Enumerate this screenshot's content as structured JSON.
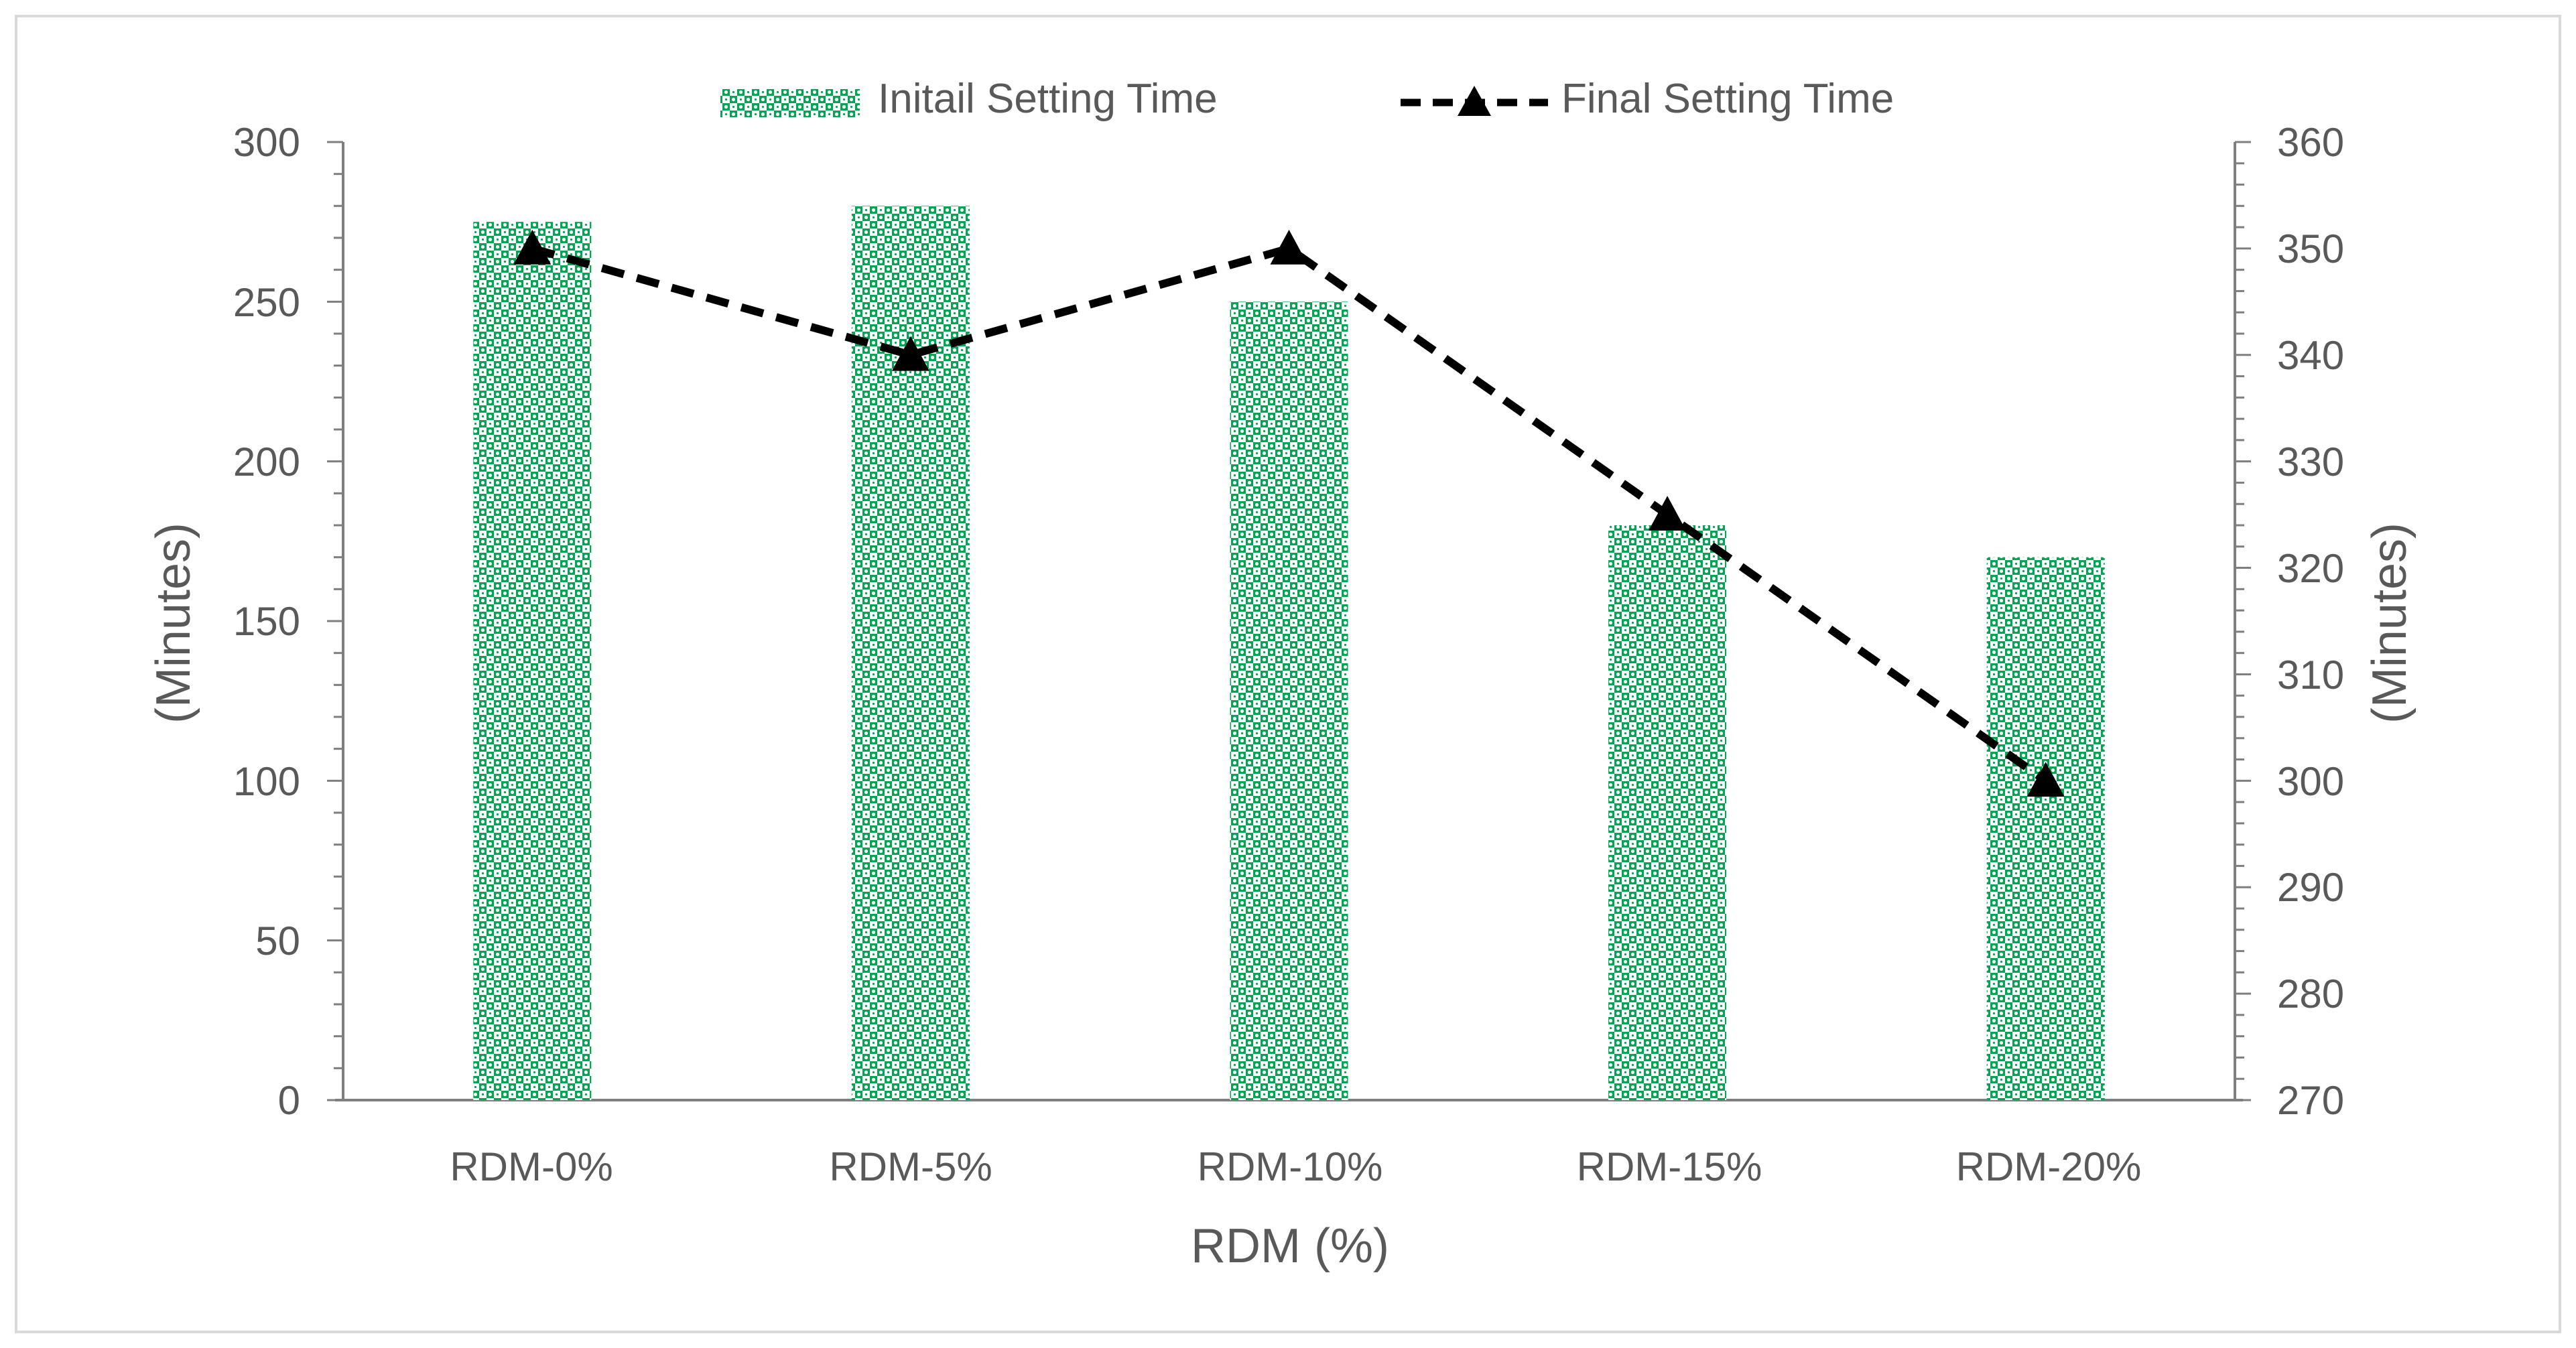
{
  "chart_data": {
    "type": "bar",
    "title": "",
    "xlabel": "RDM (%)",
    "ylabel_left": "(Minutes)",
    "ylabel_right": "(Minutes)",
    "categories": [
      "RDM-0%",
      "RDM-5%",
      "RDM-10%",
      "RDM-15%",
      "RDM-20%"
    ],
    "series": [
      {
        "name": "Initail Setting Time",
        "type": "bar",
        "axis": "left",
        "values": [
          275,
          280,
          250,
          180,
          170
        ],
        "color": "#00a651",
        "pattern": "green-dotted-checker"
      },
      {
        "name": "Final Setting Time",
        "type": "line",
        "axis": "right",
        "values": [
          350,
          340,
          350,
          325,
          300
        ],
        "color": "#000000",
        "line_style": "dashed",
        "marker": "triangle"
      }
    ],
    "ylim_left": [
      0,
      300
    ],
    "yticks_left": [
      "0",
      "50",
      "100",
      "150",
      "200",
      "250",
      "300"
    ],
    "ylim_right": [
      270,
      360
    ],
    "yticks_right": [
      "270",
      "280",
      "290",
      "300",
      "310",
      "320",
      "330",
      "340",
      "350",
      "360"
    ],
    "grid": false,
    "legend_position": "top-center",
    "colors": {
      "axis": "#7f7f7f",
      "text": "#595959",
      "border": "#d9d9d9",
      "bar": "#00a651",
      "line": "#000000"
    }
  }
}
